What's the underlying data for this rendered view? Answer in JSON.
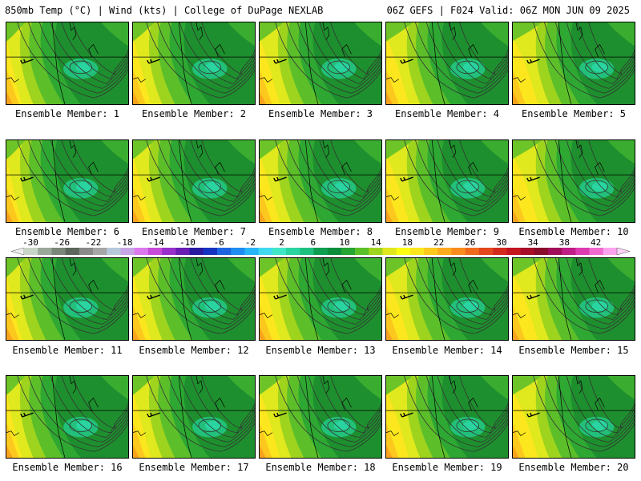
{
  "header": {
    "left_title": "850mb Temp (°C) | Wind (kts) | College of DuPage NEXLAB",
    "right_title": "06Z GEFS | F024 Valid: 06Z MON JUN 09 2025"
  },
  "panels": [
    {
      "member": 1,
      "caption": "Ensemble Member: 1"
    },
    {
      "member": 2,
      "caption": "Ensemble Member: 2"
    },
    {
      "member": 3,
      "caption": "Ensemble Member: 3"
    },
    {
      "member": 4,
      "caption": "Ensemble Member: 4"
    },
    {
      "member": 5,
      "caption": "Ensemble Member: 5"
    },
    {
      "member": 6,
      "caption": "Ensemble Member: 6"
    },
    {
      "member": 7,
      "caption": "Ensemble Member: 7"
    },
    {
      "member": 8,
      "caption": "Ensemble Member: 8"
    },
    {
      "member": 9,
      "caption": "Ensemble Member: 9"
    },
    {
      "member": 10,
      "caption": "Ensemble Member: 10"
    },
    {
      "member": 11,
      "caption": "Ensemble Member: 11"
    },
    {
      "member": 12,
      "caption": "Ensemble Member: 12"
    },
    {
      "member": 13,
      "caption": "Ensemble Member: 13"
    },
    {
      "member": 14,
      "caption": "Ensemble Member: 14"
    },
    {
      "member": 15,
      "caption": "Ensemble Member: 15"
    },
    {
      "member": 16,
      "caption": "Ensemble Member: 16"
    },
    {
      "member": 17,
      "caption": "Ensemble Member: 17"
    },
    {
      "member": 18,
      "caption": "Ensemble Member: 18"
    },
    {
      "member": 19,
      "caption": "Ensemble Member: 19"
    },
    {
      "member": 20,
      "caption": "Ensemble Member: 20"
    }
  ],
  "colorbar": {
    "labels": [
      "-30",
      "-26",
      "-22",
      "-18",
      "-14",
      "-10",
      "-6",
      "-2",
      "2",
      "6",
      "10",
      "14",
      "18",
      "22",
      "26",
      "30",
      "34",
      "38",
      "42"
    ],
    "colors": [
      "#c8d4c8",
      "#9aa89a",
      "#7a867a",
      "#5c665c",
      "#8a8a8a",
      "#a6a6a6",
      "#b8c8dc",
      "#c8a6e6",
      "#dc78ee",
      "#c84ad8",
      "#9a30cc",
      "#6a1eb4",
      "#2a1aa0",
      "#1632c0",
      "#1e64e0",
      "#1e8cf0",
      "#28b4f8",
      "#40d8f0",
      "#40e6c8",
      "#2ad4a0",
      "#1ec080",
      "#0e9e50",
      "#0a8e3c",
      "#26a434",
      "#5ac028",
      "#9ed41e",
      "#e0e81e",
      "#fcfc14",
      "#fce61e",
      "#fcc81e",
      "#fcaa1e",
      "#f88c1e",
      "#f06a1e",
      "#e4461e",
      "#d42a1e",
      "#c41420",
      "#a80c28",
      "#8a0a2c",
      "#a00c5a",
      "#c01c86",
      "#dc3cb0",
      "#f06ad0",
      "#fca2ee"
    ]
  }
}
